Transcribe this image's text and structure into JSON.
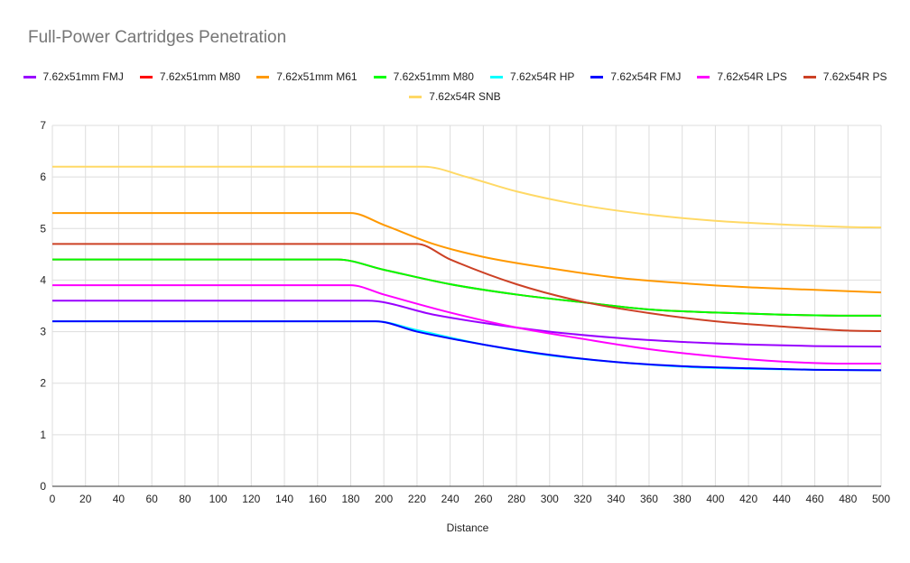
{
  "chart_data": {
    "type": "line",
    "title": "Full-Power Cartridges Penetration",
    "xlabel": "Distance",
    "ylabel": "",
    "xlim": [
      0,
      500
    ],
    "ylim": [
      0,
      7
    ],
    "x_ticks": [
      0,
      20,
      40,
      60,
      80,
      100,
      120,
      140,
      160,
      180,
      200,
      220,
      240,
      260,
      280,
      300,
      320,
      340,
      360,
      380,
      400,
      420,
      440,
      460,
      480,
      500
    ],
    "y_ticks": [
      0,
      1,
      2,
      3,
      4,
      5,
      6,
      7
    ],
    "grid": true,
    "legend_position": "top",
    "series": [
      {
        "name": "7.62x51mm FMJ",
        "color": "#9900ff",
        "points": [
          [
            0,
            3.6
          ],
          [
            190,
            3.6
          ],
          [
            230,
            3.33
          ],
          [
            260,
            3.17
          ],
          [
            300,
            3.0
          ],
          [
            340,
            2.88
          ],
          [
            380,
            2.8
          ],
          [
            420,
            2.75
          ],
          [
            460,
            2.72
          ],
          [
            500,
            2.71
          ]
        ]
      },
      {
        "name": "7.62x51mm M80",
        "color": "#ff0000",
        "points": [
          [
            0,
            4.4
          ],
          [
            172,
            4.4
          ],
          [
            200,
            4.2
          ],
          [
            240,
            3.92
          ],
          [
            280,
            3.72
          ],
          [
            320,
            3.57
          ],
          [
            360,
            3.43
          ],
          [
            400,
            3.37
          ],
          [
            440,
            3.33
          ],
          [
            480,
            3.31
          ],
          [
            500,
            3.31
          ]
        ]
      },
      {
        "name": "7.62x51mm M61",
        "color": "#ff9900",
        "points": [
          [
            0,
            5.3
          ],
          [
            180,
            5.3
          ],
          [
            200,
            5.07
          ],
          [
            230,
            4.7
          ],
          [
            260,
            4.45
          ],
          [
            300,
            4.23
          ],
          [
            340,
            4.05
          ],
          [
            380,
            3.94
          ],
          [
            420,
            3.86
          ],
          [
            460,
            3.81
          ],
          [
            500,
            3.76
          ]
        ]
      },
      {
        "name": "7.62x51mm M80",
        "color": "#00ff00",
        "points": [
          [
            0,
            4.4
          ],
          [
            172,
            4.4
          ],
          [
            200,
            4.2
          ],
          [
            240,
            3.92
          ],
          [
            280,
            3.72
          ],
          [
            320,
            3.57
          ],
          [
            360,
            3.43
          ],
          [
            400,
            3.37
          ],
          [
            440,
            3.33
          ],
          [
            480,
            3.31
          ],
          [
            500,
            3.31
          ]
        ]
      },
      {
        "name": "7.62x54R HP",
        "color": "#00ffff",
        "points": [
          [
            0,
            3.2
          ],
          [
            195,
            3.2
          ],
          [
            220,
            3.03
          ],
          [
            260,
            2.75
          ],
          [
            300,
            2.54
          ],
          [
            340,
            2.41
          ],
          [
            380,
            2.32
          ],
          [
            420,
            2.28
          ],
          [
            460,
            2.26
          ],
          [
            500,
            2.25
          ]
        ]
      },
      {
        "name": "7.62x54R FMJ",
        "color": "#0000ff",
        "points": [
          [
            0,
            3.2
          ],
          [
            195,
            3.2
          ],
          [
            220,
            3.0
          ],
          [
            260,
            2.75
          ],
          [
            300,
            2.55
          ],
          [
            340,
            2.41
          ],
          [
            380,
            2.33
          ],
          [
            420,
            2.29
          ],
          [
            460,
            2.26
          ],
          [
            500,
            2.25
          ]
        ]
      },
      {
        "name": "7.62x54R LPS",
        "color": "#ff00ff",
        "points": [
          [
            0,
            3.9
          ],
          [
            180,
            3.9
          ],
          [
            200,
            3.72
          ],
          [
            240,
            3.37
          ],
          [
            280,
            3.08
          ],
          [
            320,
            2.86
          ],
          [
            360,
            2.66
          ],
          [
            400,
            2.52
          ],
          [
            440,
            2.42
          ],
          [
            480,
            2.38
          ],
          [
            500,
            2.38
          ]
        ]
      },
      {
        "name": "7.62x54R PS",
        "color": "#cc4125",
        "points": [
          [
            0,
            4.7
          ],
          [
            220,
            4.7
          ],
          [
            240,
            4.4
          ],
          [
            280,
            3.92
          ],
          [
            320,
            3.58
          ],
          [
            360,
            3.36
          ],
          [
            400,
            3.2
          ],
          [
            440,
            3.1
          ],
          [
            480,
            3.02
          ],
          [
            500,
            3.01
          ]
        ]
      },
      {
        "name": "7.62x54R SNB",
        "color": "#ffd966",
        "points": [
          [
            0,
            6.2
          ],
          [
            224,
            6.2
          ],
          [
            250,
            6.0
          ],
          [
            280,
            5.72
          ],
          [
            320,
            5.45
          ],
          [
            360,
            5.27
          ],
          [
            400,
            5.15
          ],
          [
            440,
            5.08
          ],
          [
            480,
            5.03
          ],
          [
            500,
            5.02
          ]
        ]
      }
    ]
  }
}
